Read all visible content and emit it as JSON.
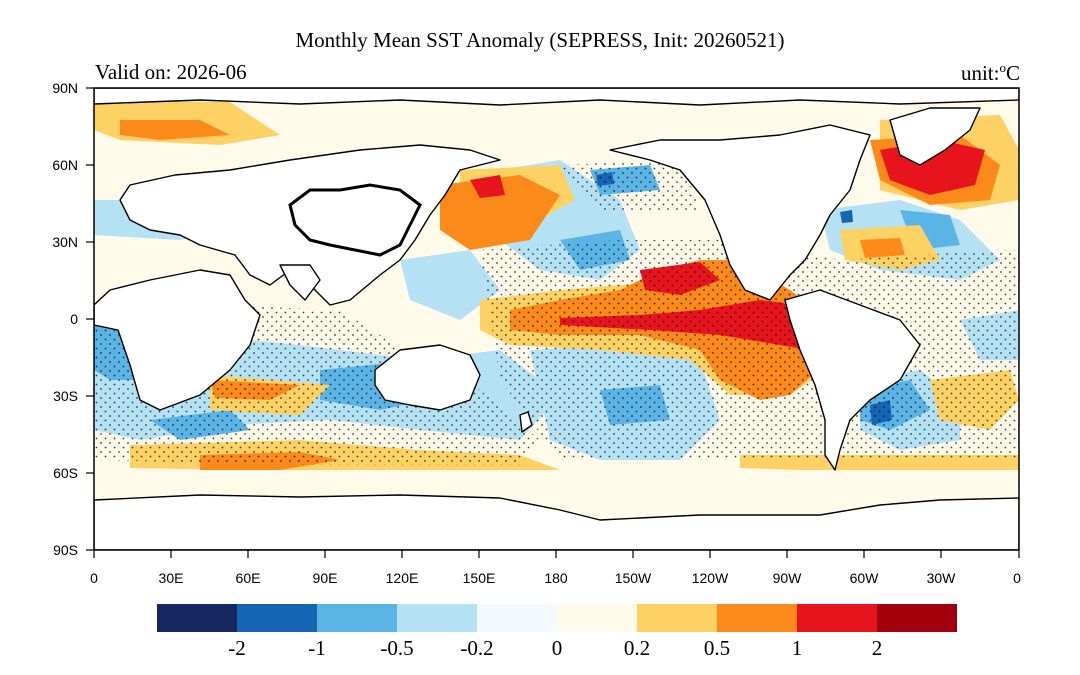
{
  "title": "Monthly Mean SST Anomaly (SEPRESS, Init: 20260521)",
  "valid_label": "Valid on: 2026-06",
  "unit_prefix": "unit:",
  "unit_sup": "o",
  "unit_symbol": "C",
  "lat_ticks": [
    "90N",
    "60N",
    "30N",
    "0",
    "30S",
    "60S",
    "90S"
  ],
  "lon_ticks": [
    "0",
    "30E",
    "60E",
    "90E",
    "120E",
    "150E",
    "180",
    "150W",
    "120W",
    "90W",
    "60W",
    "30W",
    "0"
  ],
  "colorbar": {
    "labels": [
      "-2",
      "-1",
      "-0.5",
      "-0.2",
      "0",
      "0.2",
      "0.5",
      "1",
      "2"
    ],
    "colors": [
      "#17275f",
      "#1565b5",
      "#5ab4e5",
      "#b4e2f4",
      "#f4fbfe",
      "#fffaea",
      "#fdd163",
      "#fb8a1b",
      "#e8141d",
      "#a3000f"
    ]
  },
  "colors": {
    "land": "#ffffff",
    "coastline": "#000000"
  }
}
